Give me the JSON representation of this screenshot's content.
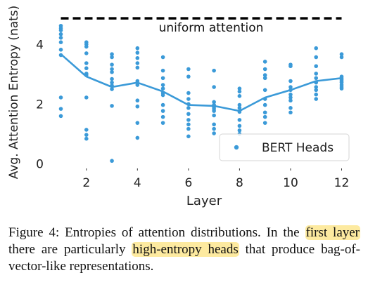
{
  "chart_data": {
    "type": "scatter",
    "xlabel": "Layer",
    "ylabel": "Avg. Attention Entropy (nats)",
    "xticks": [
      2,
      4,
      6,
      8,
      10,
      12
    ],
    "yticks": [
      0,
      2,
      4
    ],
    "xlim": [
      0.6,
      12.4
    ],
    "ylim": [
      -0.15,
      4.9
    ],
    "grid": false,
    "legend_position": "lower-right",
    "colors": {
      "points": "#3b9ad8",
      "mean_line": "#3b9ad8",
      "reference_line": "#000000"
    },
    "reference_line": {
      "y": 4.85,
      "x_range": [
        1,
        12
      ],
      "label": "uniform attention"
    },
    "series": [
      {
        "name": "BERT Heads",
        "points": [
          {
            "x": 1,
            "y": 4.6
          },
          {
            "x": 1,
            "y": 4.52
          },
          {
            "x": 1,
            "y": 4.45
          },
          {
            "x": 1,
            "y": 4.32
          },
          {
            "x": 1,
            "y": 4.2
          },
          {
            "x": 1,
            "y": 4.05
          },
          {
            "x": 1,
            "y": 3.8
          },
          {
            "x": 1,
            "y": 3.62
          },
          {
            "x": 1,
            "y": 2.2
          },
          {
            "x": 1,
            "y": 1.82
          },
          {
            "x": 1,
            "y": 1.58
          },
          {
            "x": 2,
            "y": 4.05
          },
          {
            "x": 2,
            "y": 3.98
          },
          {
            "x": 2,
            "y": 3.9
          },
          {
            "x": 2,
            "y": 3.68
          },
          {
            "x": 2,
            "y": 3.35
          },
          {
            "x": 2,
            "y": 3.18
          },
          {
            "x": 2,
            "y": 3.0
          },
          {
            "x": 2,
            "y": 2.95
          },
          {
            "x": 2,
            "y": 2.2
          },
          {
            "x": 2,
            "y": 1.12
          },
          {
            "x": 2,
            "y": 0.95
          },
          {
            "x": 2,
            "y": 0.82
          },
          {
            "x": 3,
            "y": 3.65
          },
          {
            "x": 3,
            "y": 3.55
          },
          {
            "x": 3,
            "y": 3.3
          },
          {
            "x": 3,
            "y": 3.15
          },
          {
            "x": 3,
            "y": 3.05
          },
          {
            "x": 3,
            "y": 2.82
          },
          {
            "x": 3,
            "y": 2.7
          },
          {
            "x": 3,
            "y": 2.6
          },
          {
            "x": 3,
            "y": 2.48
          },
          {
            "x": 3,
            "y": 1.92
          },
          {
            "x": 3,
            "y": 0.08
          },
          {
            "x": 4,
            "y": 3.85
          },
          {
            "x": 4,
            "y": 3.7
          },
          {
            "x": 4,
            "y": 3.52
          },
          {
            "x": 4,
            "y": 3.35
          },
          {
            "x": 4,
            "y": 3.2
          },
          {
            "x": 4,
            "y": 2.75
          },
          {
            "x": 4,
            "y": 2.62
          },
          {
            "x": 4,
            "y": 2.1
          },
          {
            "x": 4,
            "y": 1.9
          },
          {
            "x": 4,
            "y": 1.35
          },
          {
            "x": 4,
            "y": 0.85
          },
          {
            "x": 5,
            "y": 3.55
          },
          {
            "x": 5,
            "y": 3.1
          },
          {
            "x": 5,
            "y": 2.85
          },
          {
            "x": 5,
            "y": 2.62
          },
          {
            "x": 5,
            "y": 2.5
          },
          {
            "x": 5,
            "y": 2.35
          },
          {
            "x": 5,
            "y": 2.28
          },
          {
            "x": 5,
            "y": 1.95
          },
          {
            "x": 5,
            "y": 1.75
          },
          {
            "x": 5,
            "y": 1.55
          },
          {
            "x": 5,
            "y": 1.35
          },
          {
            "x": 6,
            "y": 3.15
          },
          {
            "x": 6,
            "y": 2.9
          },
          {
            "x": 6,
            "y": 2.35
          },
          {
            "x": 6,
            "y": 2.15
          },
          {
            "x": 6,
            "y": 1.98
          },
          {
            "x": 6,
            "y": 1.85
          },
          {
            "x": 6,
            "y": 1.65
          },
          {
            "x": 6,
            "y": 1.45
          },
          {
            "x": 6,
            "y": 1.3
          },
          {
            "x": 6,
            "y": 1.15
          },
          {
            "x": 6,
            "y": 0.9
          },
          {
            "x": 7,
            "y": 3.1
          },
          {
            "x": 7,
            "y": 2.55
          },
          {
            "x": 7,
            "y": 2.05
          },
          {
            "x": 7,
            "y": 1.95
          },
          {
            "x": 7,
            "y": 1.88
          },
          {
            "x": 7,
            "y": 1.82
          },
          {
            "x": 7,
            "y": 1.75
          },
          {
            "x": 7,
            "y": 1.6
          },
          {
            "x": 7,
            "y": 1.3
          },
          {
            "x": 7,
            "y": 1.15
          },
          {
            "x": 7,
            "y": 1.0
          },
          {
            "x": 8,
            "y": 2.5
          },
          {
            "x": 8,
            "y": 2.4
          },
          {
            "x": 8,
            "y": 2.25
          },
          {
            "x": 8,
            "y": 1.95
          },
          {
            "x": 8,
            "y": 1.85
          },
          {
            "x": 8,
            "y": 1.72
          },
          {
            "x": 8,
            "y": 1.45
          },
          {
            "x": 8,
            "y": 1.25
          },
          {
            "x": 8,
            "y": 1.1
          },
          {
            "x": 8,
            "y": 0.98
          },
          {
            "x": 9,
            "y": 3.4
          },
          {
            "x": 9,
            "y": 3.15
          },
          {
            "x": 9,
            "y": 2.95
          },
          {
            "x": 9,
            "y": 2.85
          },
          {
            "x": 9,
            "y": 2.45
          },
          {
            "x": 9,
            "y": 2.15
          },
          {
            "x": 9,
            "y": 1.95
          },
          {
            "x": 9,
            "y": 1.7
          },
          {
            "x": 9,
            "y": 1.55
          },
          {
            "x": 9,
            "y": 1.35
          },
          {
            "x": 10,
            "y": 3.3
          },
          {
            "x": 10,
            "y": 3.25
          },
          {
            "x": 10,
            "y": 2.75
          },
          {
            "x": 10,
            "y": 2.55
          },
          {
            "x": 10,
            "y": 2.45
          },
          {
            "x": 10,
            "y": 2.3
          },
          {
            "x": 10,
            "y": 2.2
          },
          {
            "x": 10,
            "y": 2.1
          },
          {
            "x": 10,
            "y": 1.85
          },
          {
            "x": 10,
            "y": 1.7
          },
          {
            "x": 11,
            "y": 3.85
          },
          {
            "x": 11,
            "y": 3.55
          },
          {
            "x": 11,
            "y": 3.25
          },
          {
            "x": 11,
            "y": 3.0
          },
          {
            "x": 11,
            "y": 2.85
          },
          {
            "x": 11,
            "y": 2.7
          },
          {
            "x": 11,
            "y": 2.55
          },
          {
            "x": 11,
            "y": 2.45
          },
          {
            "x": 11,
            "y": 2.3
          },
          {
            "x": 11,
            "y": 2.15
          },
          {
            "x": 12,
            "y": 3.65
          },
          {
            "x": 12,
            "y": 3.55
          },
          {
            "x": 12,
            "y": 2.9
          },
          {
            "x": 12,
            "y": 2.85
          },
          {
            "x": 12,
            "y": 2.8
          },
          {
            "x": 12,
            "y": 2.75
          },
          {
            "x": 12,
            "y": 2.7
          },
          {
            "x": 12,
            "y": 2.62
          },
          {
            "x": 12,
            "y": 2.55
          },
          {
            "x": 12,
            "y": 2.5
          }
        ]
      }
    ],
    "mean_line": {
      "x": [
        1,
        2,
        3,
        4,
        5,
        6,
        7,
        8,
        9,
        10,
        11,
        12
      ],
      "y": [
        3.65,
        2.9,
        2.55,
        2.7,
        2.4,
        1.95,
        1.92,
        1.75,
        2.2,
        2.45,
        2.75,
        2.85
      ]
    }
  },
  "caption": {
    "lead": "Figure 4:  Entropies of attention distributions.  In the ",
    "highlight1": "first layer",
    "middle": " there are particularly ",
    "highlight2": "high-entropy heads",
    "end": " that produce bag-of-vector-like representations."
  },
  "colors": {
    "highlight": "#fdeaa0"
  }
}
